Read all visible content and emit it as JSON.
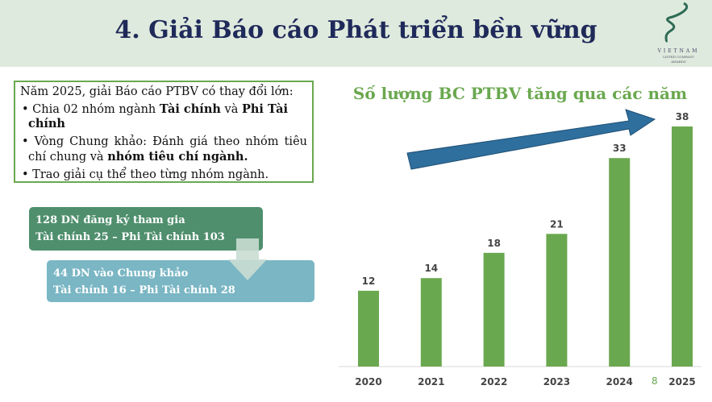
{
  "header": {
    "title": "4. Giải Báo cáo Phát triển bền vững"
  },
  "logo": {
    "line1": "VIETNAM",
    "line2": "LISTED COMPANY",
    "line3": "AWARDS"
  },
  "info": {
    "intro": "Năm 2025, giải Báo cáo PTBV có thay đổi lớn:",
    "b1_pre": "Chia 02 nhóm ngành ",
    "b1_bold1": "Tài chính",
    "b1_mid": " và ",
    "b1_bold2": "Phi Tài chính",
    "b2_pre": "Vòng Chung khảo: Đánh giá theo nhóm tiêu chí chung và ",
    "b2_bold": "nhóm tiêu chí ngành.",
    "b3": "Trao giải cụ thể theo từng nhóm ngành."
  },
  "flow": {
    "step1_line1": "128 DN đăng ký tham gia",
    "step1_line2": "Tài chính 25 – Phi Tài chính 103",
    "step2_line1": "44 DN vào Chung khảo",
    "step2_line2": "Tài chính 16 – Phi Tài chính 28"
  },
  "page_number": "8",
  "colors": {
    "bar": "#6aa84f",
    "arrow": "#2e6f9e",
    "title": "#1f2a5a"
  },
  "chart_data": {
    "type": "bar",
    "title": "Số lượng BC PTBV tăng qua các năm",
    "categories": [
      "2020",
      "2021",
      "2022",
      "2023",
      "2024",
      "2025"
    ],
    "values": [
      12,
      14,
      18,
      21,
      33,
      38
    ],
    "ylim": [
      0,
      38
    ],
    "grid": false,
    "data_labels": true
  }
}
